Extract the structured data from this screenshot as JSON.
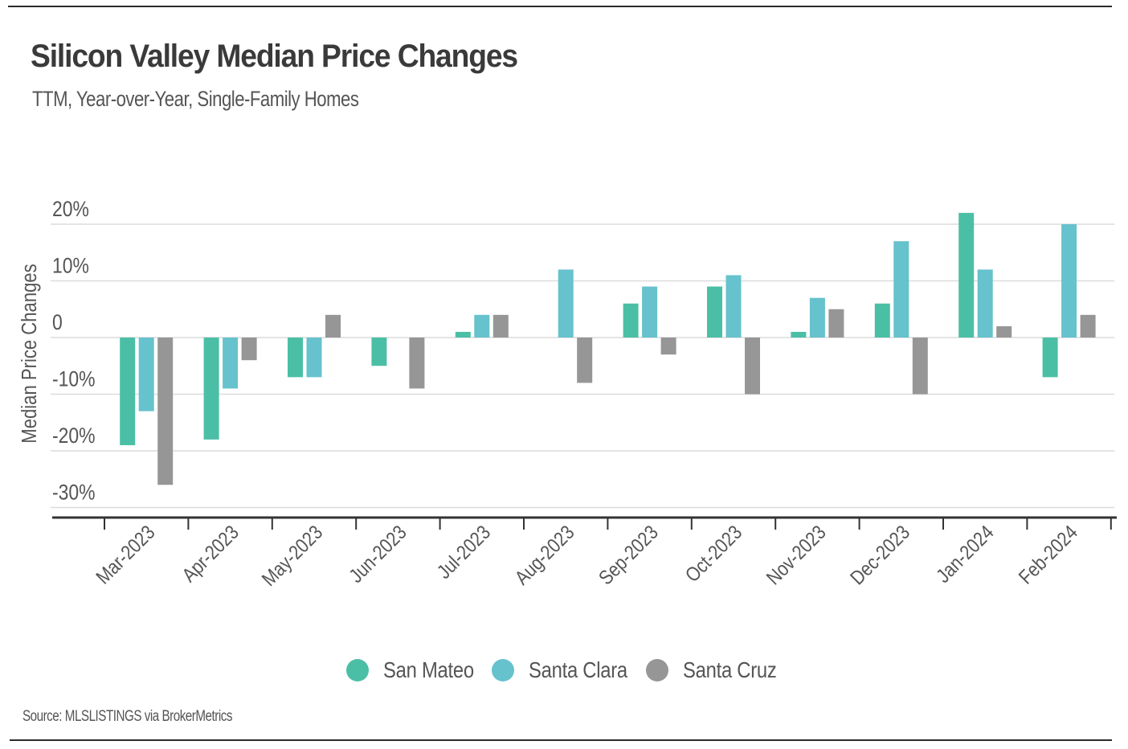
{
  "header": {
    "title": "Silicon Valley Median Price Changes",
    "subtitle": "TTM, Year-over-Year, Single-Family Homes"
  },
  "source": "Source:  MLSLISTINGS via BrokerMetrics",
  "colors": {
    "San Mateo": "#4bbfa6",
    "Santa Clara": "#66c2cd",
    "Santa Cruz": "#969696",
    "grid": "#dcdcdc",
    "axis": "#333333"
  },
  "chart_data": {
    "type": "bar",
    "title": "Silicon Valley Median Price Changes",
    "subtitle": "TTM, Year-over-Year, Single-Family Homes",
    "xlabel": "",
    "ylabel": "Median Price Changes",
    "ylim": [
      -30,
      20
    ],
    "yticks": [
      20,
      10,
      0,
      -10,
      -20,
      -30
    ],
    "ytick_labels": [
      "20%",
      "10%",
      "0",
      "-10%",
      "-20%",
      "-30%"
    ],
    "grid": true,
    "legend_position": "bottom-center",
    "categories": [
      "Mar-2023",
      "Apr-2023",
      "May-2023",
      "Jun-2023",
      "Jul-2023",
      "Aug-2023",
      "Sep-2023",
      "Oct-2023",
      "Nov-2023",
      "Dec-2023",
      "Jan-2024",
      "Feb-2024"
    ],
    "series": [
      {
        "name": "San Mateo",
        "values": [
          -19,
          -18,
          -7,
          -5,
          1,
          0,
          6,
          9,
          1,
          6,
          22,
          -7
        ]
      },
      {
        "name": "Santa Clara",
        "values": [
          -13,
          -9,
          -7,
          0,
          4,
          12,
          9,
          11,
          7,
          17,
          12,
          20
        ]
      },
      {
        "name": "Santa Cruz",
        "values": [
          -26,
          -4,
          4,
          -9,
          4,
          -8,
          -3,
          -10,
          5,
          -10,
          2,
          4
        ]
      }
    ]
  }
}
